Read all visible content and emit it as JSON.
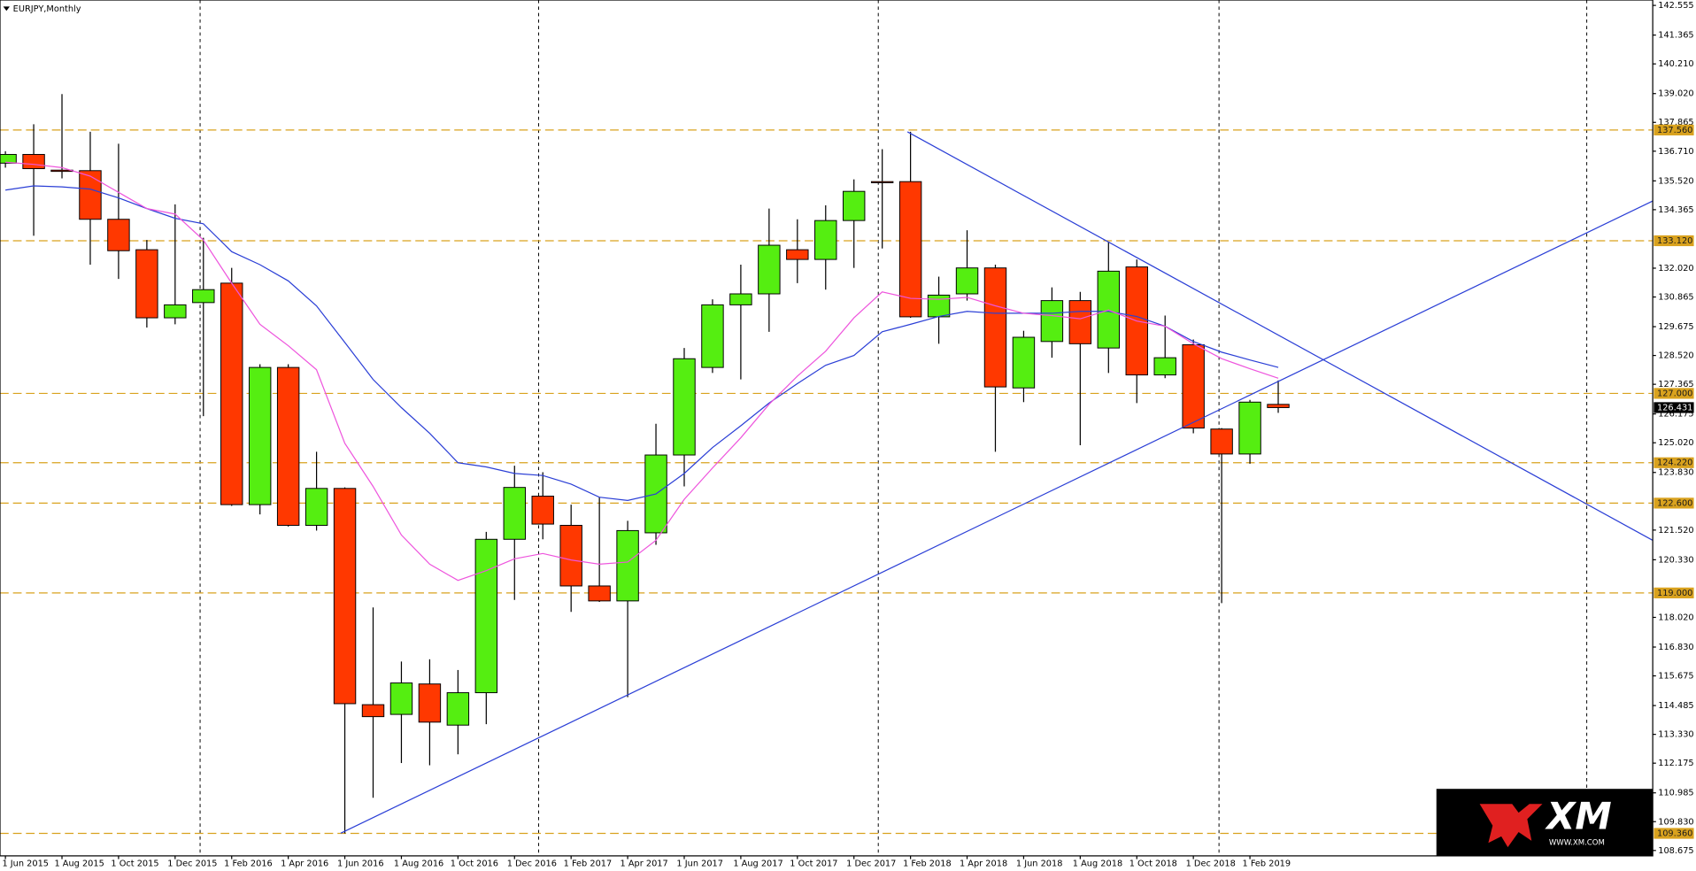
{
  "chart_data": {
    "type": "candlestick",
    "title": "EURJPY,Monthly",
    "categories": [
      "1 Jun 2015",
      null,
      "1 Aug 2015",
      null,
      "1 Oct 2015",
      null,
      "1 Dec 2015",
      null,
      "1 Feb 2016",
      null,
      "1 Apr 2016",
      null,
      "1 Jun 2016",
      null,
      "1 Aug 2016",
      null,
      "1 Oct 2016",
      null,
      "1 Dec 2016",
      null,
      "1 Feb 2017",
      null,
      "1 Apr 2017",
      null,
      "1 Jun 2017",
      null,
      "1 Aug 2017",
      null,
      "1 Oct 2017",
      null,
      "1 Dec 2017",
      null,
      "1 Feb 2018",
      null,
      "1 Apr 2018",
      null,
      "1 Jun 2018",
      null,
      "1 Aug 2018",
      null,
      "1 Oct 2018",
      null,
      "1 Dec 2018",
      null,
      "1 Feb 2019",
      null
    ],
    "open": [
      136.23,
      136.58,
      135.95,
      135.93,
      133.98,
      132.76,
      130.03,
      130.64,
      131.42,
      122.54,
      128.04,
      121.71,
      123.19,
      114.52,
      114.13,
      115.35,
      113.7,
      115.0,
      121.15,
      122.88,
      121.71,
      119.28,
      118.68,
      121.41,
      124.53,
      128.04,
      130.55,
      130.99,
      132.76,
      132.37,
      133.93,
      135.49,
      135.49,
      130.07,
      130.99,
      132.03,
      127.22,
      129.08,
      130.72,
      128.82,
      132.07,
      127.74,
      128.95,
      125.57,
      124.57,
      126.56
    ],
    "high": [
      136.71,
      137.79,
      139.0,
      137.49,
      137.01,
      133.15,
      134.58,
      133.24,
      132.03,
      128.17,
      128.17,
      124.66,
      123.23,
      118.42,
      116.25,
      116.34,
      115.91,
      121.45,
      124.1,
      123.84,
      122.54,
      122.84,
      121.89,
      125.78,
      128.82,
      130.77,
      132.16,
      134.41,
      133.98,
      134.54,
      135.58,
      136.79,
      137.49,
      131.68,
      133.54,
      132.16,
      129.51,
      131.25,
      131.07,
      133.06,
      132.37,
      130.12,
      129.16,
      125.61,
      126.74,
      127.52
    ],
    "low": [
      136.05,
      133.32,
      135.62,
      132.16,
      131.59,
      129.64,
      129.77,
      126.09,
      122.49,
      122.15,
      121.66,
      121.5,
      109.36,
      110.79,
      112.18,
      112.09,
      112.53,
      113.74,
      118.72,
      121.15,
      118.24,
      118.64,
      114.82,
      120.93,
      123.27,
      127.82,
      127.56,
      129.47,
      131.42,
      131.16,
      132.03,
      132.81,
      130.03,
      128.99,
      130.72,
      124.66,
      126.65,
      128.43,
      124.92,
      127.82,
      126.61,
      127.61,
      125.4,
      118.59,
      124.18,
      126.22
    ],
    "close": [
      136.58,
      136.01,
      135.9,
      133.98,
      132.72,
      130.03,
      130.55,
      131.16,
      122.54,
      128.04,
      121.71,
      123.19,
      114.56,
      114.04,
      115.39,
      113.82,
      115.0,
      121.15,
      123.23,
      121.76,
      119.28,
      118.68,
      121.5,
      124.53,
      128.39,
      130.55,
      130.99,
      132.94,
      132.37,
      133.93,
      135.1,
      135.45,
      130.07,
      130.94,
      132.03,
      127.26,
      129.25,
      130.72,
      128.99,
      131.9,
      127.74,
      128.43,
      125.61,
      124.57,
      126.65,
      126.431
    ],
    "up_color": "#55ee11",
    "down_color": "#ff3800",
    "lines": [
      {
        "color": "#2b3fd6",
        "values": [
          135.15,
          135.32,
          135.28,
          135.19,
          134.84,
          134.41,
          134.02,
          133.8,
          132.68,
          132.16,
          131.51,
          130.51,
          129.04,
          127.56,
          126.43,
          125.4,
          124.22,
          124.05,
          123.79,
          123.71,
          123.36,
          122.84,
          122.71,
          122.97,
          123.79,
          124.83,
          125.7,
          126.61,
          127.39,
          128.13,
          128.52,
          129.47,
          129.77,
          130.08,
          130.29,
          130.21,
          130.21,
          130.21,
          130.29,
          130.29,
          130.08,
          129.69,
          129.08,
          128.65,
          128.34,
          128.04
        ]
      },
      {
        "color": "#ee55dd",
        "values": [
          136.27,
          136.18,
          136.05,
          135.71,
          135.06,
          134.41,
          134.19,
          133.15,
          131.42,
          129.77,
          128.91,
          127.95,
          125.0,
          123.27,
          121.32,
          120.15,
          119.5,
          119.89,
          120.37,
          120.58,
          120.32,
          120.15,
          120.24,
          121.11,
          122.75,
          124.01,
          125.22,
          126.56,
          127.69,
          128.69,
          130.03,
          131.07,
          130.81,
          130.77,
          130.85,
          130.51,
          130.21,
          130.12,
          129.99,
          130.34,
          129.9,
          129.69,
          128.99,
          128.39,
          127.99,
          127.61
        ]
      }
    ],
    "levels": [
      {
        "value": 137.56,
        "label": "137.560"
      },
      {
        "value": 133.12,
        "label": "133.120"
      },
      {
        "value": 127.0,
        "label": "127.000"
      },
      {
        "value": 124.22,
        "label": "124.220"
      },
      {
        "value": 122.6,
        "label": "122.600"
      },
      {
        "value": 119.0,
        "label": "119.000"
      },
      {
        "value": 109.36,
        "label": "109.360"
      }
    ],
    "level_color": "#d9a21e",
    "current_price": 126.431,
    "ylim": [
      108.675,
      142.555
    ],
    "yticks": [
      142.555,
      141.365,
      {
        "value": 140.21,
        "label": "140.210"
      },
      {
        "value": 139.02,
        "label": "139.020"
      },
      137.865,
      {
        "value": 136.71,
        "label": "136.710"
      },
      {
        "value": 135.52,
        "label": "135.520"
      },
      134.365,
      {
        "value": 132.02,
        "label": "132.020"
      },
      130.865,
      129.675,
      {
        "value": 128.52,
        "label": "128.520"
      },
      127.365,
      126.175,
      {
        "value": 125.02,
        "label": "125.020"
      },
      {
        "value": 123.83,
        "label": "123.830"
      },
      {
        "value": 121.52,
        "label": "121.520"
      },
      {
        "value": 120.33,
        "label": "120.330"
      },
      {
        "value": 118.02,
        "label": "118.020"
      },
      {
        "value": 116.83,
        "label": "116.830"
      },
      115.675,
      114.485,
      {
        "value": 113.33,
        "label": "113.330"
      },
      112.175,
      110.985,
      {
        "value": 109.83,
        "label": "109.830"
      },
      108.675
    ]
  },
  "watermark": {
    "brand": "XM",
    "url": "WWW.XM.COM"
  }
}
